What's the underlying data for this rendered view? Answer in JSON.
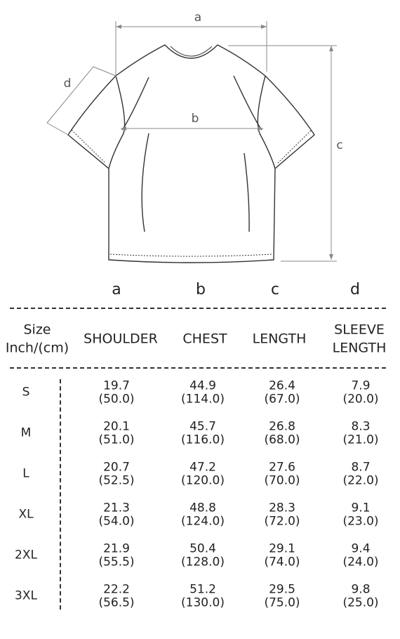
{
  "diagram": {
    "labels": [
      "a",
      "b",
      "c",
      "d"
    ]
  },
  "table": {
    "letters": [
      "a",
      "b",
      "c",
      "d"
    ],
    "header": [
      [
        "Size",
        "Inch/(cm)"
      ],
      [
        "SHOULDER"
      ],
      [
        "CHEST"
      ],
      [
        "LENGTH"
      ],
      [
        "SLEEVE",
        "LENGTH"
      ]
    ],
    "rows": [
      {
        "size": "S",
        "cells": [
          [
            "19.7",
            "(50.0)"
          ],
          [
            "44.9",
            "(114.0)"
          ],
          [
            "26.4",
            "(67.0)"
          ],
          [
            "7.9",
            "(20.0)"
          ]
        ]
      },
      {
        "size": "M",
        "cells": [
          [
            "20.1",
            "(51.0)"
          ],
          [
            "45.7",
            "(116.0)"
          ],
          [
            "26.8",
            "(68.0)"
          ],
          [
            "8.3",
            "(21.0)"
          ]
        ]
      },
      {
        "size": "L",
        "cells": [
          [
            "20.7",
            "(52.5)"
          ],
          [
            "47.2",
            "(120.0)"
          ],
          [
            "27.6",
            "(70.0)"
          ],
          [
            "8.7",
            "(22.0)"
          ]
        ]
      },
      {
        "size": "XL",
        "cells": [
          [
            "21.3",
            "(54.0)"
          ],
          [
            "48.8",
            "(124.0)"
          ],
          [
            "28.3",
            "(72.0)"
          ],
          [
            "9.1",
            "(23.0)"
          ]
        ]
      },
      {
        "size": "2XL",
        "cells": [
          [
            "21.9",
            "(55.5)"
          ],
          [
            "50.4",
            "(128.0)"
          ],
          [
            "29.1",
            "(74.0)"
          ],
          [
            "9.4",
            "(24.0)"
          ]
        ]
      },
      {
        "size": "3XL",
        "cells": [
          [
            "22.2",
            "(56.5)"
          ],
          [
            "51.2",
            "(130.0)"
          ],
          [
            "29.5",
            "(75.0)"
          ],
          [
            "9.8",
            "(25.0)"
          ]
        ]
      }
    ]
  }
}
